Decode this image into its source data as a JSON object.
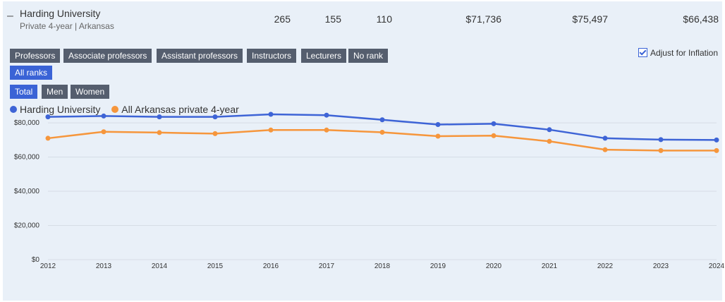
{
  "institution": {
    "name": "Harding University",
    "subtitle": "Private 4-year | Arkansas",
    "stats": [
      "265",
      "155",
      "110",
      "$71,736",
      "$75,497",
      "$66,438"
    ]
  },
  "rank_buttons": [
    "Professors",
    "Associate professors",
    "Assistant professors",
    "Instructors",
    "Lecturers",
    "No rank"
  ],
  "all_ranks_label": "All ranks",
  "gender_buttons": [
    "Total",
    "Men",
    "Women"
  ],
  "inflation_label": "Adjust for Inflation",
  "colors": {
    "series1": "#3e64d6",
    "series2": "#f6963c",
    "active_button": "#3a63d6",
    "button": "#555e6e"
  },
  "chart_data": {
    "type": "line",
    "title": "",
    "xlabel": "",
    "ylabel": "",
    "x": [
      "2012",
      "2013",
      "2014",
      "2015",
      "2016",
      "2017",
      "2018",
      "2019",
      "2020",
      "2021",
      "2022",
      "2023",
      "2024"
    ],
    "ylim": [
      0,
      85000
    ],
    "yticks": [
      0,
      20000,
      40000,
      60000,
      80000
    ],
    "ytick_labels": [
      "$0",
      "$20,000",
      "$40,000",
      "$60,000",
      "$80,000"
    ],
    "series": [
      {
        "name": "Harding University",
        "color": "#3e64d6",
        "values": [
          83500,
          84000,
          83500,
          83500,
          85000,
          84500,
          81800,
          79000,
          79500,
          76000,
          71000,
          70200,
          70000
        ]
      },
      {
        "name": "All Arkansas private 4-year",
        "color": "#f6963c",
        "values": [
          71000,
          74800,
          74300,
          73700,
          75800,
          75800,
          74500,
          72200,
          72500,
          69200,
          64300,
          63800,
          63800
        ]
      }
    ]
  }
}
